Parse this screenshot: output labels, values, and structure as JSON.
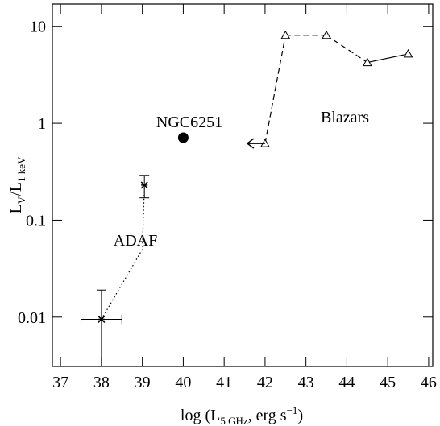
{
  "chart_data": {
    "type": "scatter",
    "xlabel": {
      "prefix": "log (L",
      "sub": "5 GHz",
      "mid": ", erg s",
      "sup": "−1",
      "suffix": ")"
    },
    "ylabel": {
      "prefix": "L",
      "sub1": "V",
      "mid": "/L",
      "sub2": "1 keV"
    },
    "xlim": [
      36.8,
      46.1
    ],
    "ylim": [
      0.0031,
      17
    ],
    "ylog": true,
    "xticks": [
      37,
      38,
      39,
      40,
      41,
      42,
      43,
      44,
      45,
      46
    ],
    "yticks": [
      0.01,
      0.1,
      1,
      10
    ],
    "series": [
      {
        "name": "ADAF",
        "color": "#000000",
        "marker": "star",
        "line": "dotted",
        "x": [
          38,
          39.05
        ],
        "values": [
          0.0095,
          0.23
        ],
        "xerr": [
          0.5,
          0
        ],
        "yerr_high": [
          0.019,
          0.29
        ],
        "yerr_low": [
          0.002,
          0.17
        ],
        "curve_x": [
          38,
          39.0,
          39.05
        ],
        "curve_values": [
          0.0095,
          0.05,
          0.23
        ]
      },
      {
        "name": "NGC6251",
        "color": "#000000",
        "marker": "filled-circle",
        "x": [
          40
        ],
        "values": [
          0.71
        ]
      },
      {
        "name": "Blazars",
        "color": "#000000",
        "marker": "open-triangle",
        "x": [
          42,
          42.5,
          43.5,
          44.5,
          45.5
        ],
        "values": [
          0.62,
          8.1,
          8.1,
          4.24,
          5.2
        ],
        "x_upper_limit": [
          true,
          false,
          false,
          false,
          false
        ],
        "line_styles": [
          "dashed",
          "dashed",
          "dashed",
          "solid"
        ]
      }
    ]
  }
}
